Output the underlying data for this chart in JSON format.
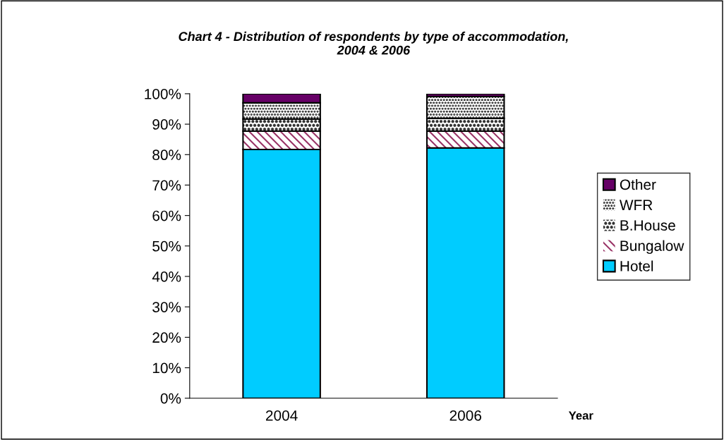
{
  "chart_data": {
    "type": "bar",
    "stacked": true,
    "title": "Chart 4 - Distribution of respondents by type of accommodation,\n2004 & 2006",
    "xlabel": "Year",
    "categories": [
      "2004",
      "2006"
    ],
    "series": [
      {
        "name": "Hotel",
        "color": "#00ccff",
        "values": [
          81.7,
          82.2
        ]
      },
      {
        "name": "Bungalow",
        "color": "#993366",
        "values": [
          6.0,
          5.5
        ]
      },
      {
        "name": "B.House",
        "color": "#333333",
        "values": [
          4.0,
          4.2
        ]
      },
      {
        "name": "WFR",
        "color": "#000000",
        "values": [
          5.3,
          7.2
        ]
      },
      {
        "name": "Other",
        "color": "#660066",
        "values": [
          3.0,
          0.9
        ]
      }
    ],
    "ylim": [
      0,
      100
    ],
    "yticks": [
      {
        "value": 0,
        "label": "0%"
      },
      {
        "value": 10,
        "label": "10%"
      },
      {
        "value": 20,
        "label": "20%"
      },
      {
        "value": 30,
        "label": "30%"
      },
      {
        "value": 40,
        "label": "40%"
      },
      {
        "value": 50,
        "label": "50%"
      },
      {
        "value": 60,
        "label": "60%"
      },
      {
        "value": 70,
        "label": "70%"
      },
      {
        "value": 80,
        "label": "80%"
      },
      {
        "value": 90,
        "label": "90%"
      },
      {
        "value": 100,
        "label": "100%"
      }
    ],
    "grid": false,
    "legend": "right"
  }
}
